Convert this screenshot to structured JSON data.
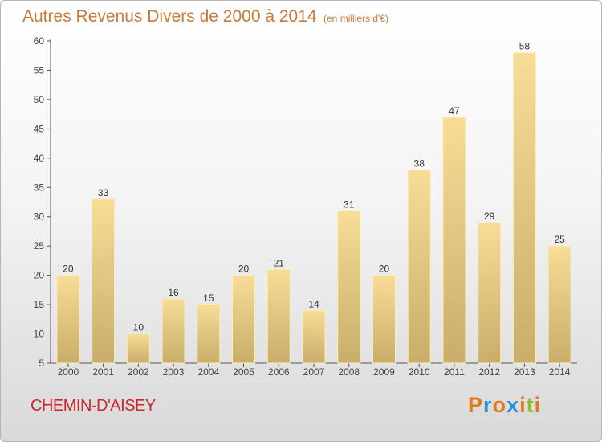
{
  "title": "Autres Revenus Divers de 2000 à 2014",
  "title_unit": "(en milliers d'€)",
  "commune": "CHEMIN-D'AISEY",
  "logo": {
    "text": "Proxiti",
    "letters": [
      {
        "char": "P",
        "color": "#e07a1a"
      },
      {
        "char": "r",
        "color": "#2e8fd0"
      },
      {
        "char": "o",
        "color": "#e07a1a"
      },
      {
        "char": "x",
        "color": "#2e8fd0"
      },
      {
        "char": "i",
        "color": "#e07a1a"
      },
      {
        "char": "t",
        "color": "#8bbf2f"
      },
      {
        "char": "i",
        "color": "#e07a1a"
      }
    ]
  },
  "colors": {
    "title": "#c87a3a",
    "commune": "#c8272e",
    "bar_light": "#f7dd96",
    "bar_dark": "#c9ad6b",
    "bar_edge": "#fbeeb8"
  },
  "chart_data": {
    "type": "bar",
    "title": "Autres Revenus Divers de 2000 à 2014",
    "unit": "(en milliers d'€)",
    "categories": [
      "2000",
      "2001",
      "2002",
      "2003",
      "2004",
      "2005",
      "2006",
      "2007",
      "2008",
      "2009",
      "2010",
      "2011",
      "2012",
      "2013",
      "2014"
    ],
    "values": [
      20,
      33,
      10,
      16,
      15,
      20,
      21,
      14,
      31,
      20,
      38,
      47,
      29,
      58,
      25
    ],
    "ylim": [
      5,
      60
    ],
    "yticks": [
      5,
      10,
      15,
      20,
      25,
      30,
      35,
      40,
      45,
      50,
      55,
      60
    ],
    "grid": false,
    "legend": "none"
  }
}
